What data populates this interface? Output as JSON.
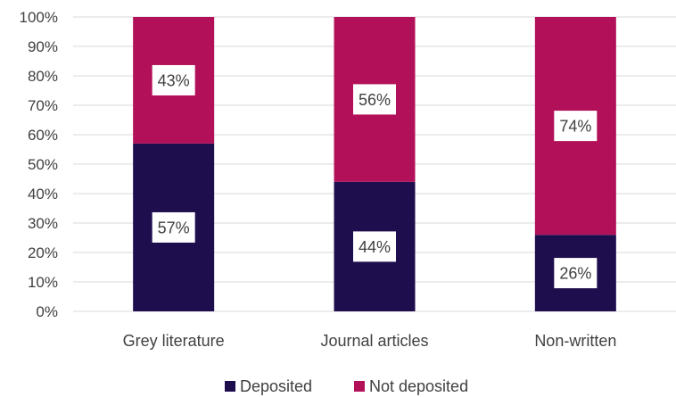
{
  "chart_data": {
    "type": "bar",
    "stacked": true,
    "orientation": "vertical",
    "categories": [
      "Grey literature",
      "Journal articles",
      "Non-written"
    ],
    "series": [
      {
        "name": "Deposited",
        "values": [
          57,
          44,
          26
        ],
        "labels": [
          "57%",
          "44%",
          "26%"
        ],
        "color": "#1f0e4e"
      },
      {
        "name": "Not deposited",
        "values": [
          43,
          56,
          74
        ],
        "labels": [
          "43%",
          "56%",
          "74%"
        ],
        "color": "#b3105a"
      }
    ],
    "y_ticks": [
      "0%",
      "10%",
      "20%",
      "30%",
      "40%",
      "50%",
      "60%",
      "70%",
      "80%",
      "90%",
      "100%"
    ],
    "ylim": [
      0,
      100
    ],
    "grid": true,
    "legend_position": "bottom",
    "title": "",
    "xlabel": "",
    "ylabel": ""
  }
}
